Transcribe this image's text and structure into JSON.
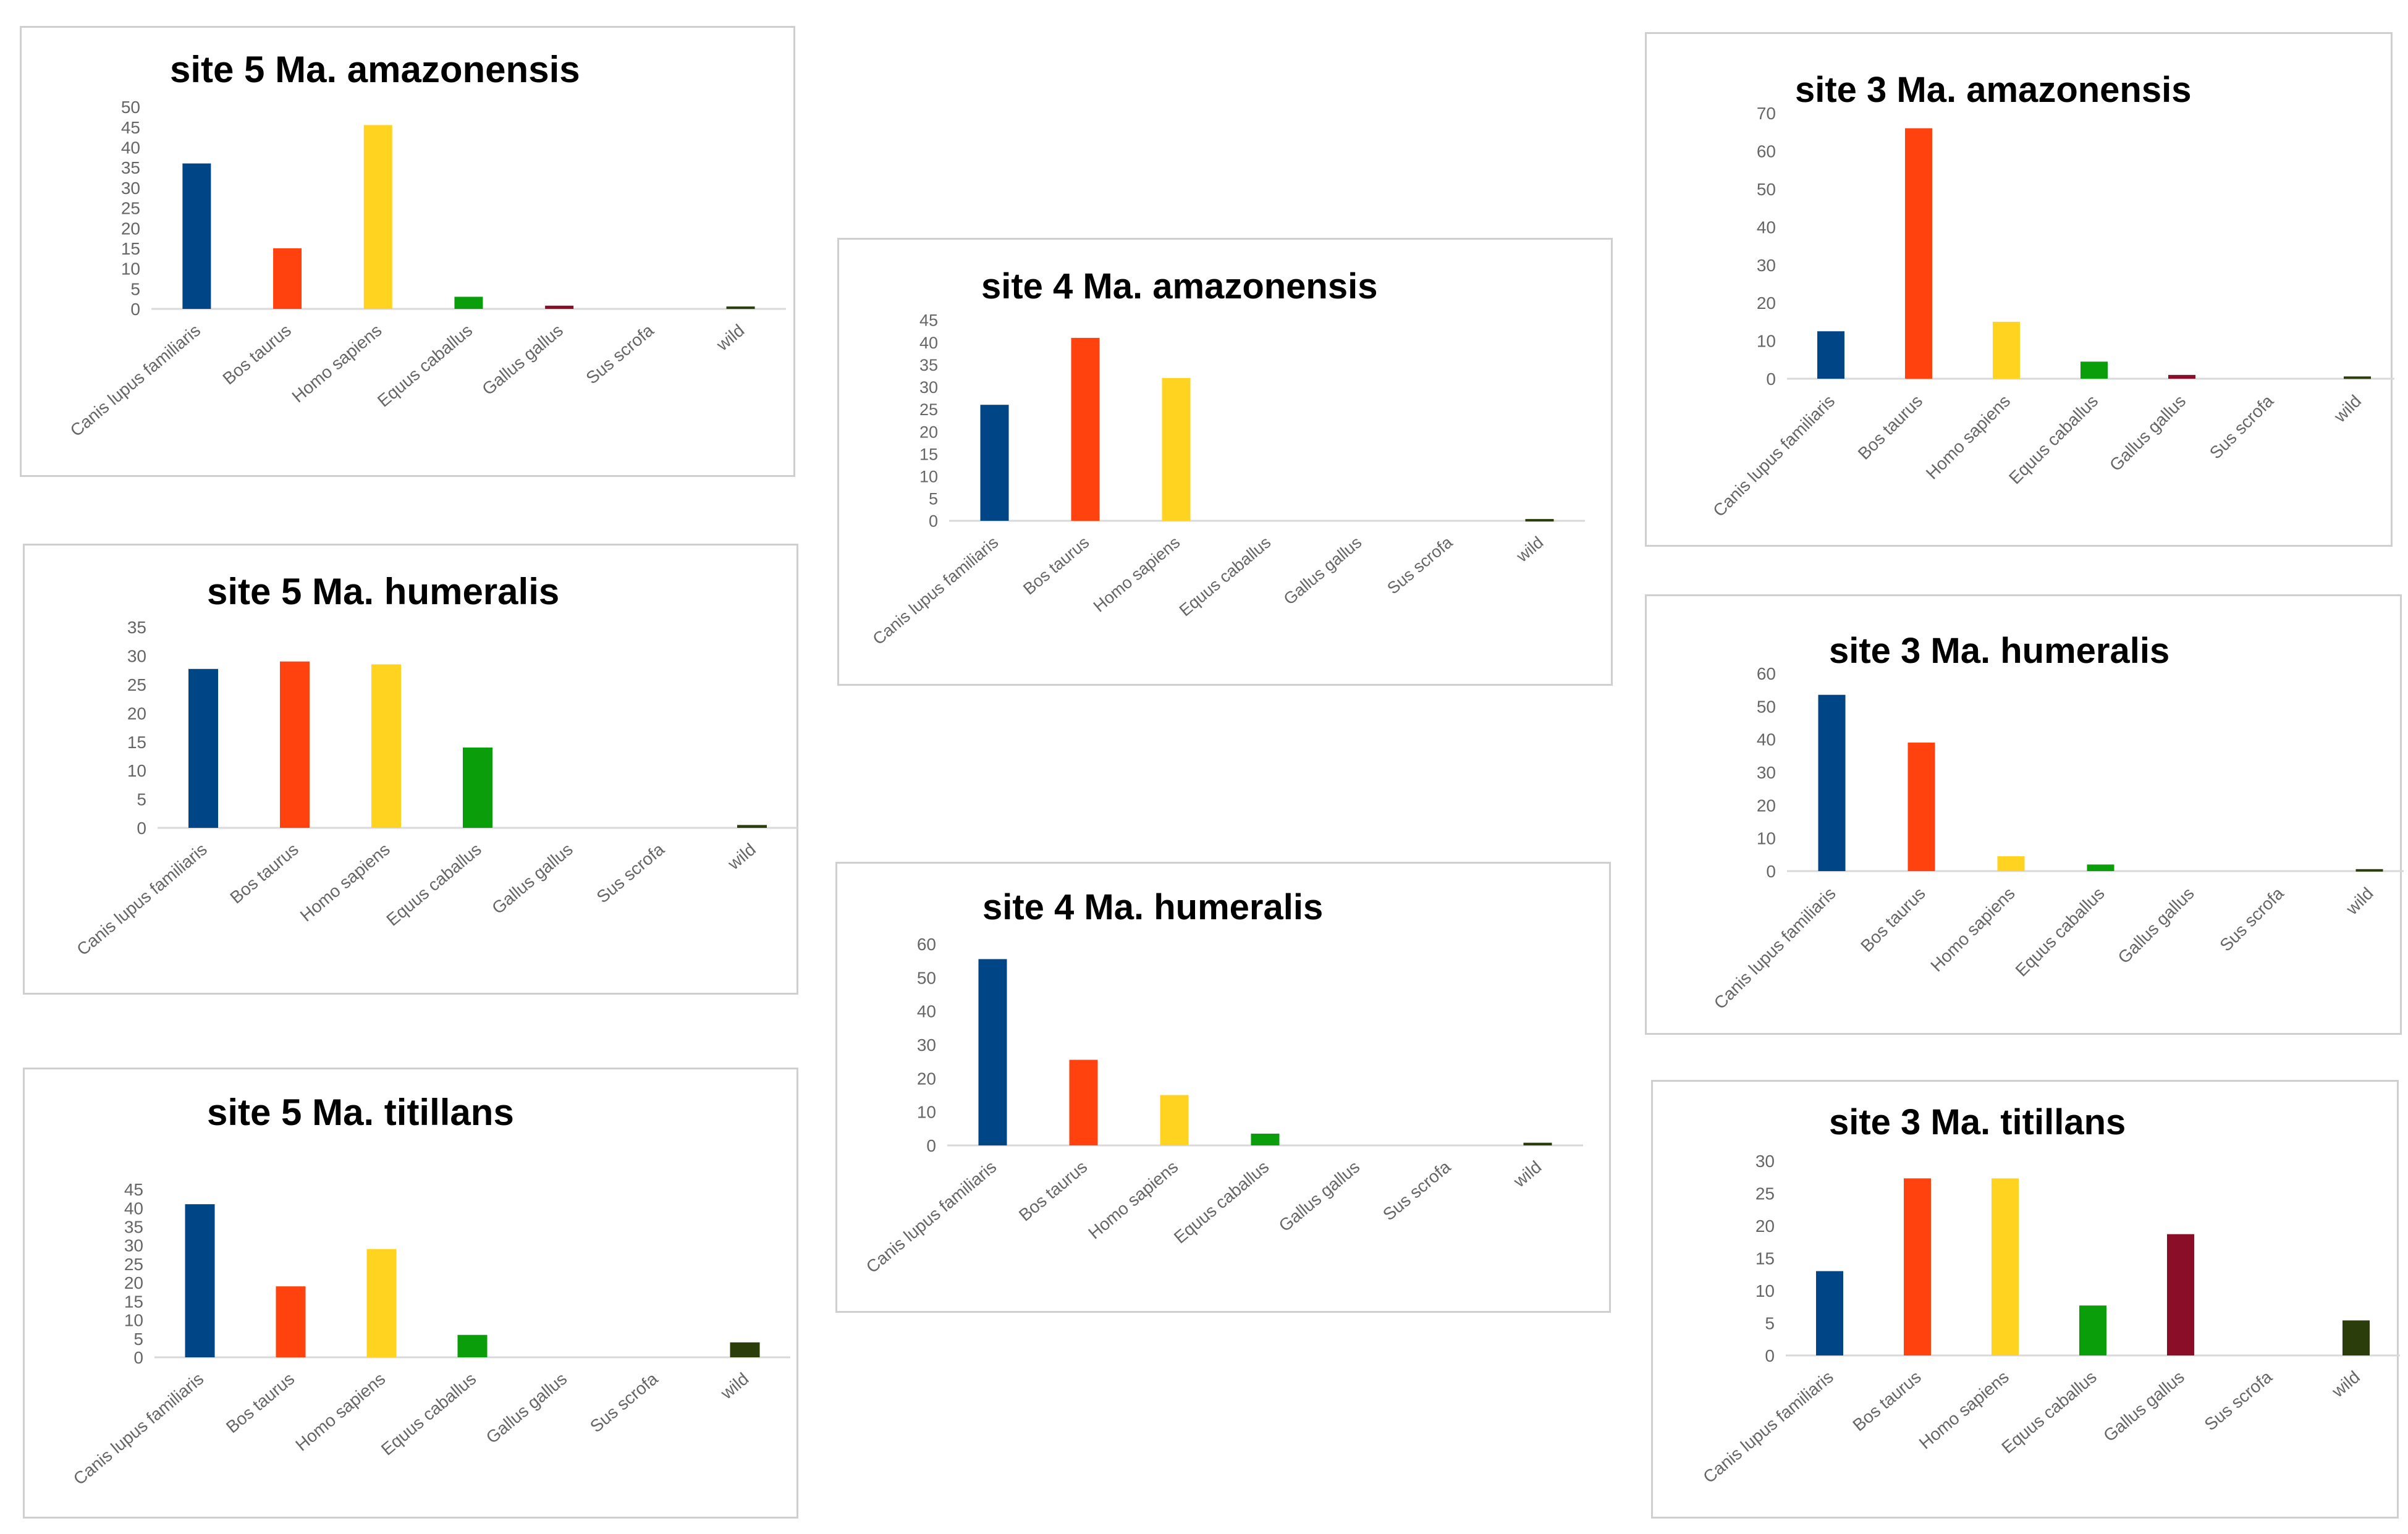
{
  "colors": {
    "Canis lupus familiaris": "#004586",
    "Bos taurus": "#ff420e",
    "Homo sapiens": "#ffd320",
    "Equus caballus": "#0a9e0a",
    "Gallus gallus": "#8b0e28",
    "Sus scrofa": "#7e0021",
    "wild": "#2a3d0a"
  },
  "chart_data": [
    {
      "type": "bar",
      "title": "site 5 Ma. amazonensis",
      "categories": [
        "Canis lupus familiaris",
        "Bos taurus",
        "Homo sapiens",
        "Equus caballus",
        "Gallus gallus",
        "Sus scrofa",
        "wild"
      ],
      "values": [
        36,
        15,
        45.5,
        3,
        0.8,
        0,
        0.6
      ],
      "yticks": [
        0,
        5,
        10,
        15,
        20,
        25,
        30,
        35,
        40,
        45,
        50
      ],
      "ylim": [
        0,
        50
      ]
    },
    {
      "type": "bar",
      "title": "site 5 Ma. humeralis",
      "categories": [
        "Canis lupus familiaris",
        "Bos taurus",
        "Homo sapiens",
        "Equus caballus",
        "Gallus gallus",
        "Sus scrofa",
        "wild"
      ],
      "values": [
        27.7,
        29,
        28.5,
        14,
        0,
        0,
        0.5
      ],
      "yticks": [
        0,
        5,
        10,
        15,
        20,
        25,
        30,
        35
      ],
      "ylim": [
        0,
        35
      ]
    },
    {
      "type": "bar",
      "title": "site 5 Ma. titillans",
      "categories": [
        "Canis lupus familiaris",
        "Bos taurus",
        "Homo sapiens",
        "Equus caballus",
        "Gallus gallus",
        "Sus scrofa",
        "wild"
      ],
      "values": [
        41,
        19,
        29,
        6,
        0,
        0,
        4
      ],
      "yticks": [
        0,
        5,
        10,
        15,
        20,
        25,
        30,
        35,
        40,
        45
      ],
      "ylim": [
        0,
        45
      ]
    },
    {
      "type": "bar",
      "title": "site 4 Ma. amazonensis",
      "categories": [
        "Canis lupus familiaris",
        "Bos taurus",
        "Homo sapiens",
        "Equus caballus",
        "Gallus gallus",
        "Sus scrofa",
        "wild"
      ],
      "values": [
        26,
        41,
        32,
        0,
        0,
        0,
        0.4
      ],
      "yticks": [
        0,
        5,
        10,
        15,
        20,
        25,
        30,
        35,
        40,
        45
      ],
      "ylim": [
        0,
        45
      ]
    },
    {
      "type": "bar",
      "title": "site 4 Ma. humeralis",
      "categories": [
        "Canis lupus familiaris",
        "Bos taurus",
        "Homo sapiens",
        "Equus caballus",
        "Gallus gallus",
        "Sus scrofa",
        "wild"
      ],
      "values": [
        55.5,
        25.5,
        15,
        3.5,
        0,
        0,
        0.8
      ],
      "yticks": [
        0,
        10,
        20,
        30,
        40,
        50,
        60
      ],
      "ylim": [
        0,
        60
      ]
    },
    {
      "type": "bar",
      "title": "site 3 Ma. amazonensis",
      "categories": [
        "Canis lupus familiaris",
        "Bos taurus",
        "Homo sapiens",
        "Equus caballus",
        "Gallus gallus",
        "Sus scrofa",
        "wild"
      ],
      "values": [
        12.5,
        66,
        15,
        4.5,
        1,
        0,
        0.6
      ],
      "yticks": [
        0,
        10,
        20,
        30,
        40,
        50,
        60,
        70
      ],
      "ylim": [
        0,
        70
      ]
    },
    {
      "type": "bar",
      "title": "site 3 Ma. humeralis",
      "categories": [
        "Canis lupus familiaris",
        "Bos taurus",
        "Homo sapiens",
        "Equus caballus",
        "Gallus gallus",
        "Sus scrofa",
        "wild"
      ],
      "values": [
        53.5,
        39,
        4.5,
        2,
        0,
        0,
        0.6
      ],
      "yticks": [
        0,
        10,
        20,
        30,
        40,
        50,
        60
      ],
      "ylim": [
        0,
        60
      ]
    },
    {
      "type": "bar",
      "title": "site 3 Ma. titillans",
      "categories": [
        "Canis lupus familiaris",
        "Bos taurus",
        "Homo sapiens",
        "Equus caballus",
        "Gallus gallus",
        "Sus scrofa",
        "wild"
      ],
      "values": [
        13,
        27.3,
        27.3,
        7.7,
        18.7,
        0,
        5.4
      ],
      "yticks": [
        0,
        5,
        10,
        15,
        20,
        25,
        30
      ],
      "ylim": [
        0,
        30
      ]
    }
  ]
}
